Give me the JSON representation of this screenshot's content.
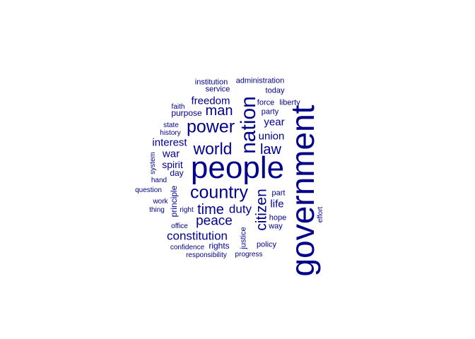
{
  "word_color": "#00008B",
  "words": {
    "government": "government",
    "people": "people",
    "nation": "nation",
    "country": "country",
    "power": "power",
    "world": "world",
    "citizen": "citizen",
    "man": "man",
    "law": "law",
    "time": "time",
    "peace": "peace",
    "constitution": "constitution",
    "freedom": "freedom",
    "duty": "duty",
    "interest": "interest",
    "union": "union",
    "year": "year",
    "war": "war",
    "spirit": "spirit",
    "life": "life",
    "day": "day",
    "principle": "principle",
    "purpose": "purpose",
    "party": "party",
    "liberty": "liberty",
    "force": "force",
    "today": "today",
    "service": "service",
    "institution": "institution",
    "administration": "administration",
    "faith": "faith",
    "state": "state",
    "history": "history",
    "system": "system",
    "hand": "hand",
    "question": "question",
    "work": "work",
    "thing": "thing",
    "right": "right",
    "office": "office",
    "part": "part",
    "hope": "hope",
    "way": "way",
    "effort": "effort",
    "justice": "justice",
    "policy": "policy",
    "rights": "rights",
    "confidence": "confidence",
    "responsibility": "responsibility",
    "progress": "progress"
  }
}
